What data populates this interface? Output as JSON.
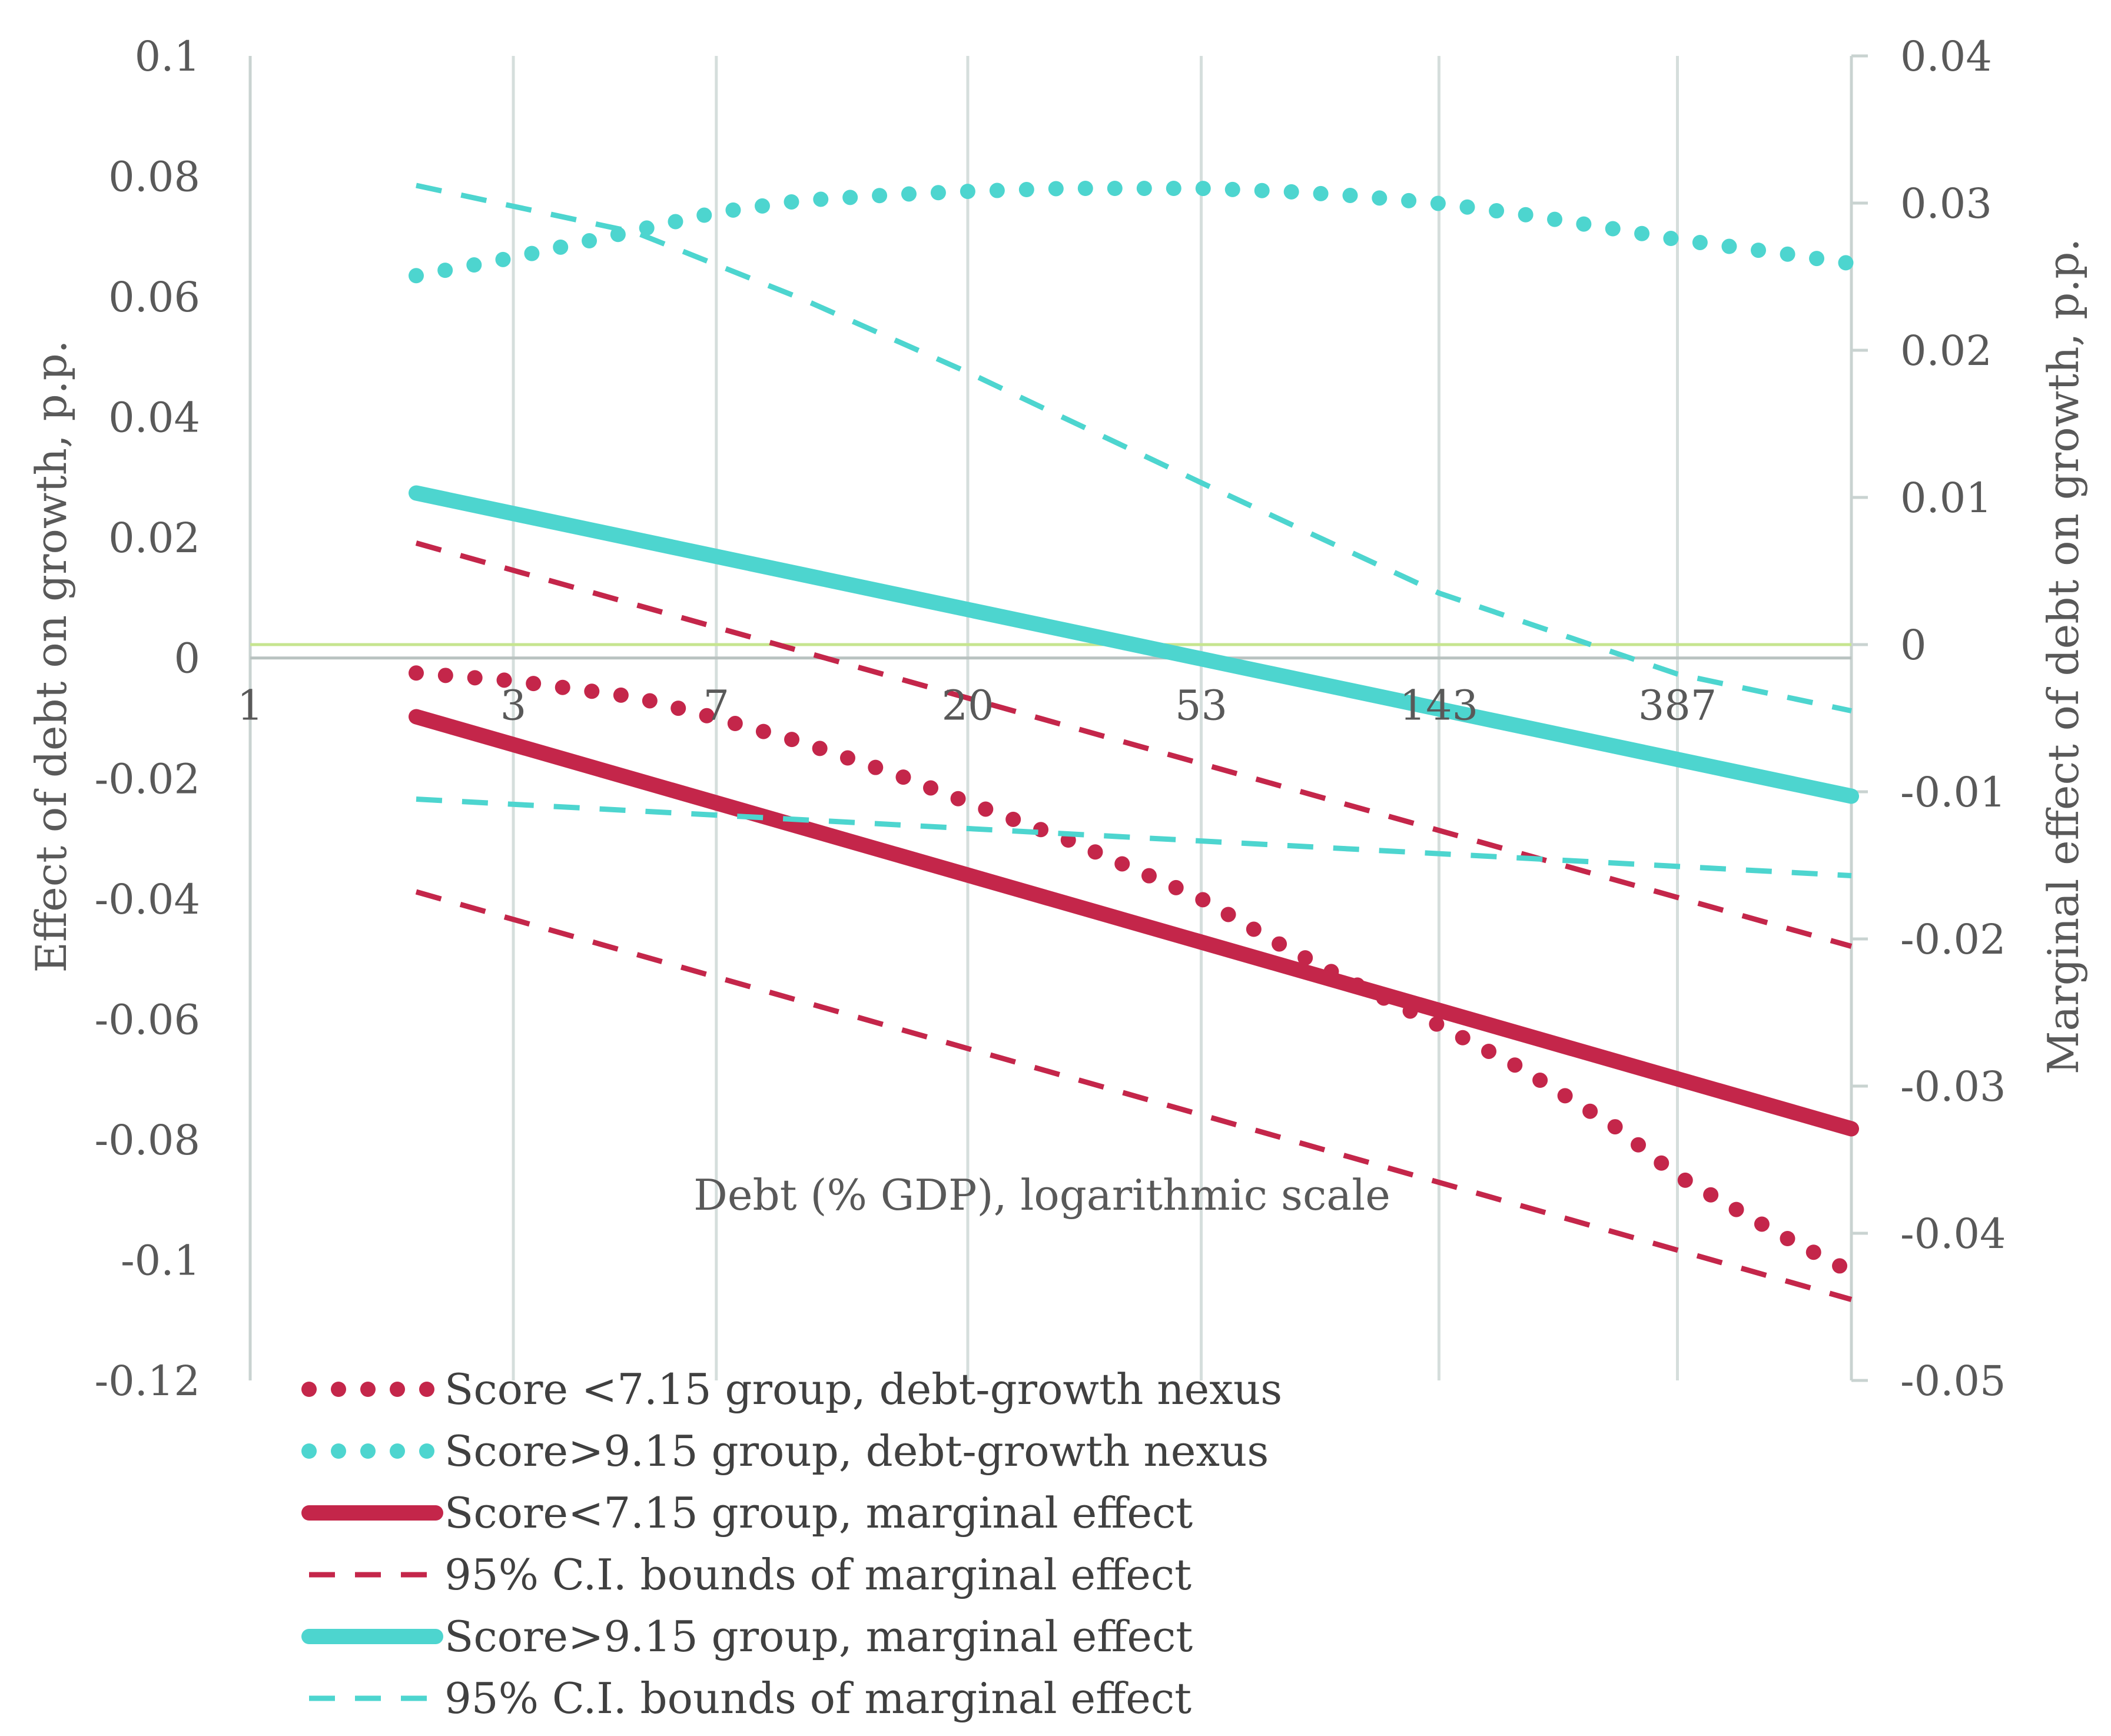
{
  "chart_data": {
    "type": "line",
    "xlabel": "Debt (% GDP), logarithmic scale",
    "ylabel": "Effect of debt on growth, p.p.",
    "y2label": "Marginal effect of debt on growth, p.p.",
    "x_scale": "log",
    "x_ticks": [
      "1",
      "3",
      "7",
      "20",
      "53",
      "143",
      "387"
    ],
    "x_tick_values": [
      1,
      3,
      7,
      20,
      53,
      143,
      387
    ],
    "xlim": [
      1,
      800
    ],
    "ylim": [
      -0.12,
      0.1
    ],
    "y_ticks": [
      "0.1",
      "0.08",
      "0.06",
      "0.04",
      "0.02",
      "0",
      "-0.02",
      "-0.04",
      "-0.06",
      "-0.08",
      "-0.1",
      "-0.12"
    ],
    "y_tick_values": [
      0.1,
      0.08,
      0.06,
      0.04,
      0.02,
      0,
      -0.02,
      -0.04,
      -0.06,
      -0.08,
      -0.1,
      -0.12
    ],
    "y2lim": [
      -0.05,
      0.04
    ],
    "y2_ticks": [
      "0.04",
      "0.03",
      "0.02",
      "0.01",
      "0",
      "-0.01",
      "-0.02",
      "-0.03",
      "-0.04",
      "-0.05"
    ],
    "y2_tick_values": [
      0.04,
      0.03,
      0.02,
      0.01,
      0,
      -0.01,
      -0.02,
      -0.03,
      -0.04,
      -0.05
    ],
    "grid": "vertical",
    "zero_line_color": "#c6e58f",
    "x": [
      2,
      3,
      5,
      7,
      10,
      15,
      20,
      30,
      53,
      75,
      100,
      143,
      200,
      300,
      387,
      600,
      800
    ],
    "series": [
      {
        "name": "Score <7.15 group, debt-growth nexus",
        "axis": "left",
        "style": "dotted",
        "color": "#c4264a",
        "width": 26,
        "x": [
          2,
          3,
          5,
          7,
          10,
          15,
          20,
          30,
          53,
          75,
          100,
          143,
          200,
          300,
          387,
          600,
          800
        ],
        "values": [
          -0.0025,
          -0.0038,
          -0.0065,
          -0.01,
          -0.014,
          -0.0195,
          -0.024,
          -0.03,
          -0.04,
          -0.048,
          -0.054,
          -0.061,
          -0.068,
          -0.078,
          -0.086,
          -0.096,
          -0.102
        ]
      },
      {
        "name": "Score>9.15 group, debt-growth nexus",
        "axis": "left",
        "style": "dotted",
        "color": "#4dd5cf",
        "width": 26,
        "x": [
          2,
          3,
          5,
          7,
          10,
          15,
          20,
          30,
          53,
          75,
          100,
          143,
          200,
          300,
          387,
          600,
          800
        ],
        "values": [
          0.0635,
          0.0665,
          0.071,
          0.074,
          0.076,
          0.077,
          0.0775,
          0.078,
          0.078,
          0.0775,
          0.0768,
          0.0755,
          0.0738,
          0.0712,
          0.0695,
          0.0672,
          0.0655
        ]
      },
      {
        "name": "Score<7.15 group, marginal effect",
        "axis": "right",
        "style": "solid",
        "color": "#c4264a",
        "width": 26,
        "x": [
          2,
          800
        ],
        "values": [
          -0.0049,
          -0.0329
        ]
      },
      {
        "name": "95% C.I. bounds of marginal effect",
        "axis": "right",
        "style": "dashed",
        "color": "#c4264a",
        "width": 9,
        "x": [
          2,
          800
        ],
        "values": [
          0.0069,
          -0.0205
        ]
      },
      {
        "name": "95% C.I. bounds of marginal effect (lower)",
        "axis": "right",
        "style": "dashed",
        "color": "#c4264a",
        "width": 9,
        "in_legend": false,
        "x": [
          2,
          800
        ],
        "values": [
          -0.0168,
          -0.0445
        ]
      },
      {
        "name": "Score>9.15 group, marginal effect",
        "axis": "right",
        "style": "solid",
        "color": "#4dd5cf",
        "width": 26,
        "x": [
          2,
          800
        ],
        "values": [
          0.0103,
          -0.0103
        ]
      },
      {
        "name": "95% C.I. bounds of marginal effect",
        "axis": "right",
        "style": "dashed",
        "color": "#4dd5cf",
        "width": 9,
        "x": [
          2,
          5,
          10,
          20,
          53,
          143,
          387,
          800
        ],
        "values": [
          0.0312,
          0.028,
          0.0235,
          0.0185,
          0.011,
          0.0035,
          -0.002,
          -0.0045
        ]
      },
      {
        "name": "95% C.I. bounds of marginal effect (lower)",
        "axis": "right",
        "style": "dashed",
        "color": "#4dd5cf",
        "width": 9,
        "in_legend": false,
        "x": [
          2,
          800
        ],
        "values": [
          -0.0105,
          -0.0157
        ]
      }
    ],
    "legend": [
      {
        "label": "Score <7.15 group, debt-growth nexus",
        "style": "dotted",
        "color": "#c4264a"
      },
      {
        "label": "Score>9.15 group, debt-growth nexus",
        "style": "dotted",
        "color": "#4dd5cf"
      },
      {
        "label": "Score<7.15 group, marginal effect",
        "style": "solid",
        "color": "#c4264a"
      },
      {
        "label": "95% C.I. bounds of marginal effect",
        "style": "dashed",
        "color": "#c4264a"
      },
      {
        "label": "Score>9.15 group, marginal effect",
        "style": "solid",
        "color": "#4dd5cf"
      },
      {
        "label": "95% C.I. bounds of marginal effect",
        "style": "dashed",
        "color": "#4dd5cf"
      }
    ],
    "legend_position": "bottom-left"
  }
}
